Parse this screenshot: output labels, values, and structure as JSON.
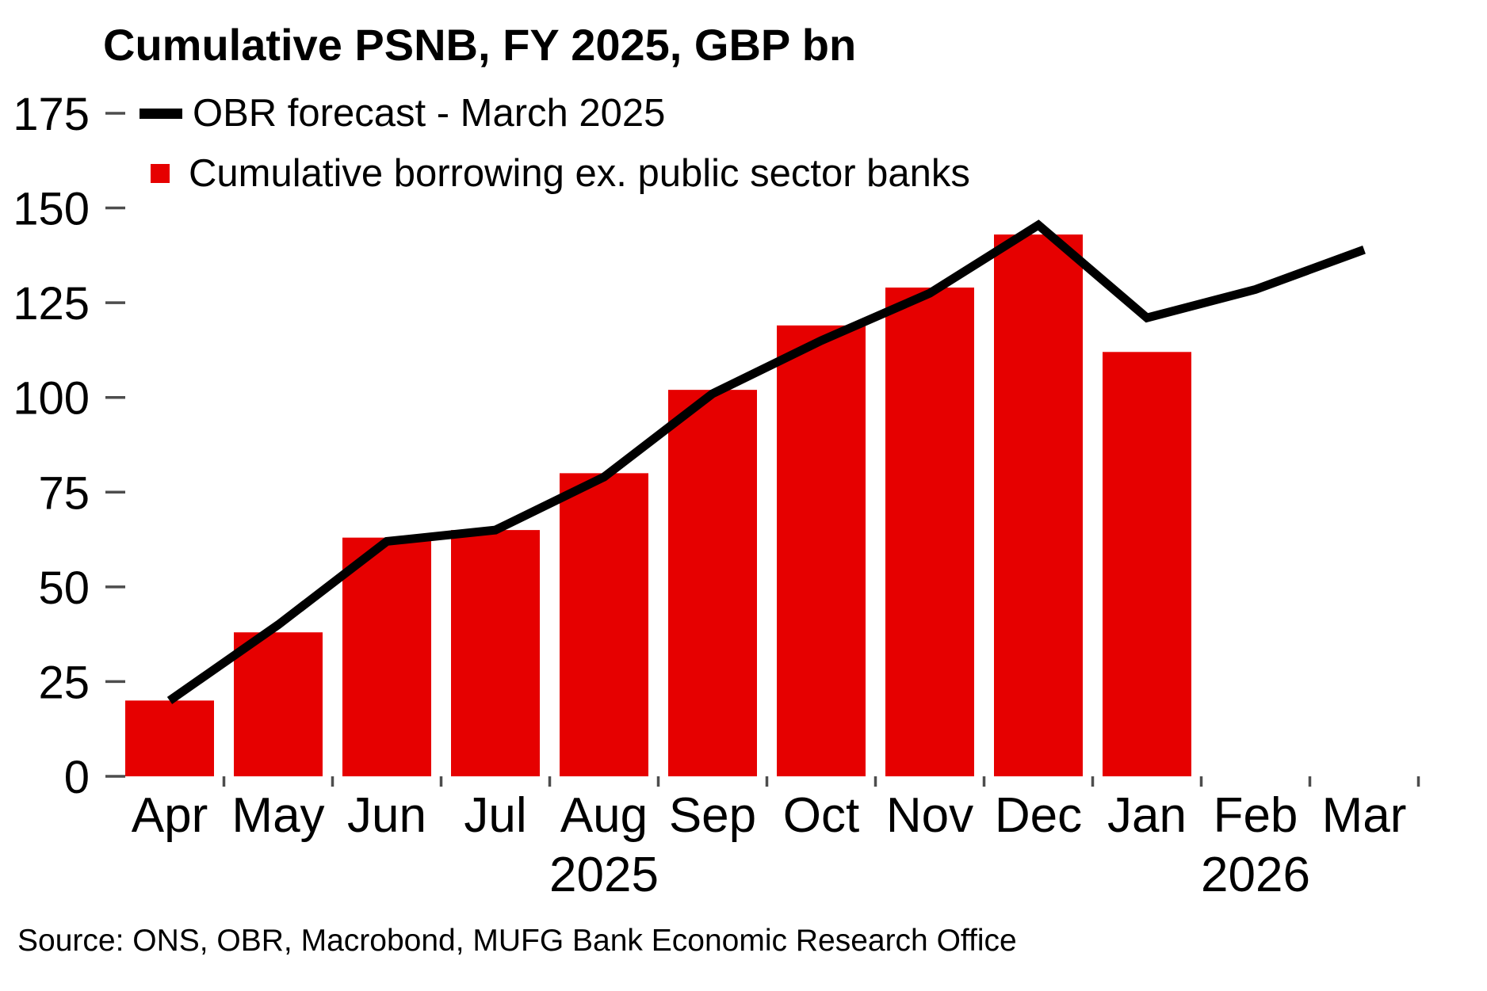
{
  "source": "Source: ONS, OBR, Macrobond, MUFG Bank Economic Research Office",
  "chart_data": {
    "type": "bar",
    "title": "Cumulative PSNB, FY 2025, GBP bn",
    "categories": [
      "Apr",
      "May",
      "Jun",
      "Jul",
      "Aug",
      "Sep",
      "Oct",
      "Nov",
      "Dec",
      "Jan",
      "Feb",
      "Mar"
    ],
    "x_axis_year_labels": [
      {
        "label": "2025",
        "month_index": 4
      },
      {
        "label": "2026",
        "month_index": 10
      }
    ],
    "ylim": [
      0,
      175
    ],
    "yticks": [
      0,
      25,
      50,
      75,
      100,
      125,
      150,
      175
    ],
    "grid": false,
    "legend_position": "top-left",
    "series": [
      {
        "name": "OBR forecast - March 2025",
        "type": "line",
        "color": "#000000",
        "values": [
          20,
          40,
          62,
          65,
          79,
          101,
          115,
          127.5,
          145.5,
          121,
          128.5,
          139
        ]
      },
      {
        "name": "Cumulative borrowing ex. public sector banks",
        "type": "bar",
        "color": "#e60000",
        "values": [
          20,
          38,
          63,
          65,
          80,
          102,
          119,
          129,
          143,
          112,
          null,
          null
        ]
      }
    ]
  }
}
